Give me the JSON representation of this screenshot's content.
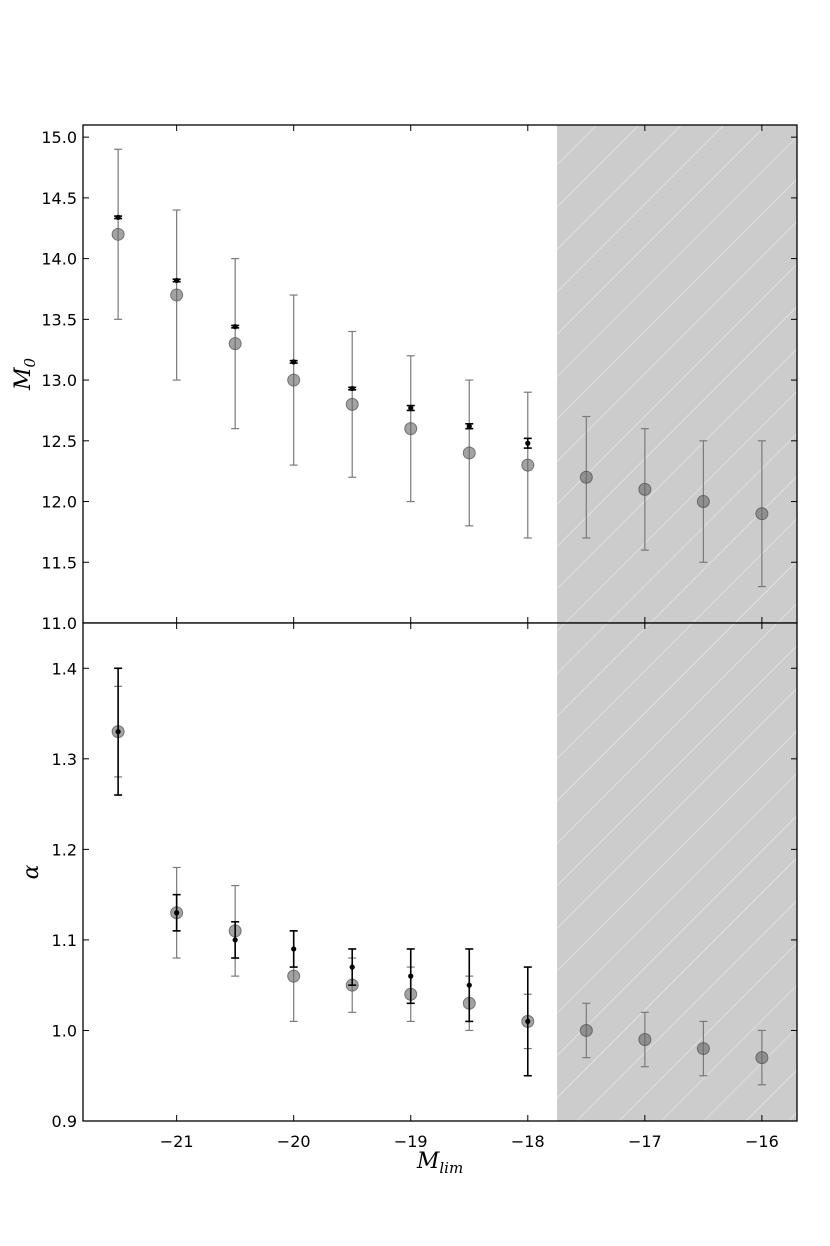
{
  "chart_data": [
    {
      "type": "scatter",
      "panel": "top",
      "ylabel": "M",
      "ylabel_sub": "0",
      "xlim": [
        -21.8,
        -15.7
      ],
      "ylim": [
        11.0,
        15.1
      ],
      "yticks": [
        11.0,
        11.5,
        12.0,
        12.5,
        13.0,
        13.5,
        14.0,
        14.5,
        15.0
      ],
      "ytick_labels": [
        "11.0",
        "11.5",
        "12.0",
        "12.5",
        "13.0",
        "13.5",
        "14.0",
        "14.5",
        "15.0"
      ],
      "shaded_region": {
        "x_from": -17.75,
        "fill": "#cccccc",
        "hatch": "diagonal white lines"
      },
      "series": [
        {
          "style": "large grey circles with grey error bars",
          "color": "#808080",
          "x": [
            -21.5,
            -21.0,
            -20.5,
            -20.0,
            -19.5,
            -19.0,
            -18.5,
            -18.0,
            -17.5,
            -17.0,
            -16.5,
            -16.0
          ],
          "y": [
            14.2,
            13.7,
            13.3,
            13.0,
            12.8,
            12.6,
            12.4,
            12.3,
            12.2,
            12.1,
            12.0,
            11.9
          ],
          "y_lo": [
            13.5,
            13.0,
            12.6,
            12.3,
            12.2,
            12.0,
            11.8,
            11.7,
            11.7,
            11.6,
            11.5,
            11.3
          ],
          "y_hi": [
            14.9,
            14.4,
            14.0,
            13.7,
            13.4,
            13.2,
            13.0,
            12.9,
            12.7,
            12.6,
            12.5,
            12.5
          ]
        },
        {
          "style": "small black dots with black error bars",
          "color": "#000000",
          "x": [
            -21.5,
            -21.0,
            -20.5,
            -20.0,
            -19.5,
            -19.0,
            -18.5,
            -18.0
          ],
          "y": [
            14.34,
            13.82,
            13.44,
            13.15,
            12.93,
            12.77,
            12.62,
            12.48
          ],
          "y_lo": [
            14.33,
            13.81,
            13.43,
            13.14,
            12.92,
            12.75,
            12.6,
            12.44
          ],
          "y_hi": [
            14.35,
            13.83,
            13.45,
            13.16,
            12.94,
            12.79,
            12.64,
            12.52
          ]
        }
      ]
    },
    {
      "type": "scatter",
      "panel": "bottom",
      "ylabel": "α",
      "xlabel": "M",
      "xlabel_sub": "lim",
      "xlim": [
        -21.8,
        -15.7
      ],
      "ylim": [
        0.9,
        1.45
      ],
      "yticks": [
        0.9,
        1.0,
        1.1,
        1.2,
        1.3,
        1.4
      ],
      "ytick_labels": [
        "0.9",
        "1.0",
        "1.1",
        "1.2",
        "1.3",
        "1.4"
      ],
      "xticks": [
        -21,
        -20,
        -19,
        -18,
        -17,
        -16
      ],
      "xtick_labels": [
        "−21",
        "−20",
        "−19",
        "−18",
        "−17",
        "−16"
      ],
      "shaded_region": {
        "x_from": -17.75,
        "fill": "#cccccc",
        "hatch": "diagonal white lines"
      },
      "series": [
        {
          "style": "large grey circles with grey error bars",
          "color": "#808080",
          "x": [
            -21.5,
            -21.0,
            -20.5,
            -20.0,
            -19.5,
            -19.0,
            -18.5,
            -18.0,
            -17.5,
            -17.0,
            -16.5,
            -16.0
          ],
          "y": [
            1.33,
            1.13,
            1.11,
            1.06,
            1.05,
            1.04,
            1.03,
            1.01,
            1.0,
            0.99,
            0.98,
            0.97
          ],
          "y_lo": [
            1.28,
            1.08,
            1.06,
            1.01,
            1.02,
            1.01,
            1.0,
            0.98,
            0.97,
            0.96,
            0.95,
            0.94
          ],
          "y_hi": [
            1.38,
            1.18,
            1.16,
            1.11,
            1.08,
            1.07,
            1.06,
            1.04,
            1.03,
            1.02,
            1.01,
            1.0
          ]
        },
        {
          "style": "small black dots with black error bars",
          "color": "#000000",
          "x": [
            -21.5,
            -21.0,
            -20.5,
            -20.0,
            -19.5,
            -19.0,
            -18.5,
            -18.0
          ],
          "y": [
            1.33,
            1.13,
            1.1,
            1.09,
            1.07,
            1.06,
            1.05,
            1.01
          ],
          "y_lo": [
            1.26,
            1.11,
            1.08,
            1.07,
            1.05,
            1.03,
            1.01,
            0.95
          ],
          "y_hi": [
            1.4,
            1.15,
            1.12,
            1.11,
            1.09,
            1.09,
            1.09,
            1.07
          ]
        }
      ]
    }
  ]
}
